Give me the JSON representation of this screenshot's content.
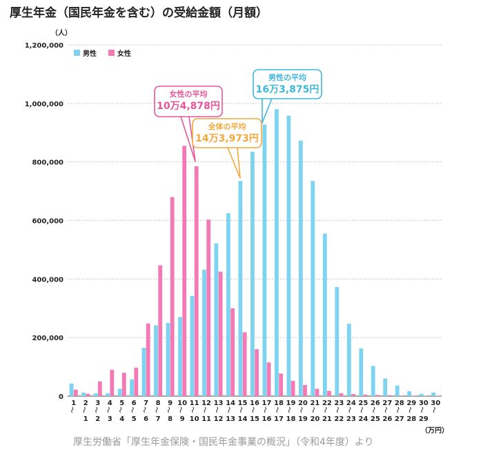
{
  "title": "厚生年金（国民年金を含む）の受給金額（月額）",
  "source": "厚生労働省「厚生年金保険・国民年金事業の概況」（令和4年度）より",
  "chart_data": {
    "type": "bar",
    "y_unit": "（人）",
    "x_unit": "（万円）",
    "ylim": [
      0,
      1200000
    ],
    "y_ticks": [
      "0",
      "200,000",
      "400,000",
      "600,000",
      "800,000",
      "1,000,000",
      "1,200,000"
    ],
    "y_tick_values": [
      0,
      200000,
      400000,
      600000,
      800000,
      1000000,
      1200000
    ],
    "grid": true,
    "legend_position": "top-left",
    "categories": [
      {
        "top": "1",
        "bottom": ""
      },
      {
        "top": "2",
        "bottom": "1"
      },
      {
        "top": "3",
        "bottom": "2"
      },
      {
        "top": "4",
        "bottom": "3"
      },
      {
        "top": "5",
        "bottom": "4"
      },
      {
        "top": "6",
        "bottom": "5"
      },
      {
        "top": "7",
        "bottom": "6"
      },
      {
        "top": "8",
        "bottom": "7"
      },
      {
        "top": "9",
        "bottom": "8"
      },
      {
        "top": "10",
        "bottom": "9"
      },
      {
        "top": "11",
        "bottom": "10"
      },
      {
        "top": "12",
        "bottom": "11"
      },
      {
        "top": "13",
        "bottom": "12"
      },
      {
        "top": "14",
        "bottom": "13"
      },
      {
        "top": "15",
        "bottom": "14"
      },
      {
        "top": "16",
        "bottom": "15"
      },
      {
        "top": "17",
        "bottom": "16"
      },
      {
        "top": "18",
        "bottom": "17"
      },
      {
        "top": "19",
        "bottom": "18"
      },
      {
        "top": "20",
        "bottom": "19"
      },
      {
        "top": "21",
        "bottom": "20"
      },
      {
        "top": "22",
        "bottom": "21"
      },
      {
        "top": "23",
        "bottom": "22"
      },
      {
        "top": "24",
        "bottom": "23"
      },
      {
        "top": "25",
        "bottom": "24"
      },
      {
        "top": "26",
        "bottom": "25"
      },
      {
        "top": "27",
        "bottom": "26"
      },
      {
        "top": "28",
        "bottom": "27"
      },
      {
        "top": "29",
        "bottom": "28"
      },
      {
        "top": "30",
        "bottom": "29"
      },
      {
        "top": "30",
        "bottom": ""
      }
    ],
    "series": [
      {
        "name": "男性",
        "color": "#7dd3f0",
        "values": [
          43000,
          12000,
          10000,
          10000,
          25000,
          57000,
          165000,
          242000,
          250000,
          270000,
          342000,
          432000,
          522000,
          625000,
          735000,
          835000,
          928000,
          980000,
          958000,
          873000,
          735000,
          555000,
          373000,
          247000,
          163000,
          103000,
          60000,
          36000,
          17000,
          8000,
          12000
        ]
      },
      {
        "name": "女性",
        "color": "#f47ab5",
        "values": [
          22000,
          8000,
          50000,
          90000,
          80000,
          97000,
          248000,
          447000,
          680000,
          855000,
          785000,
          603000,
          425000,
          300000,
          218000,
          160000,
          115000,
          77000,
          52000,
          38000,
          25000,
          18000,
          10000,
          7000,
          5000,
          4000,
          3000,
          2000,
          1000,
          1000,
          1000
        ]
      }
    ],
    "annotations": [
      {
        "label": "女性の平均",
        "value": "10万4,878円",
        "color": "#e8549a"
      },
      {
        "label": "全体の平均",
        "value": "14万3,973円",
        "color": "#f2a93b"
      },
      {
        "label": "男性の平均",
        "value": "16万3,875円",
        "color": "#3fb6dc"
      }
    ]
  }
}
